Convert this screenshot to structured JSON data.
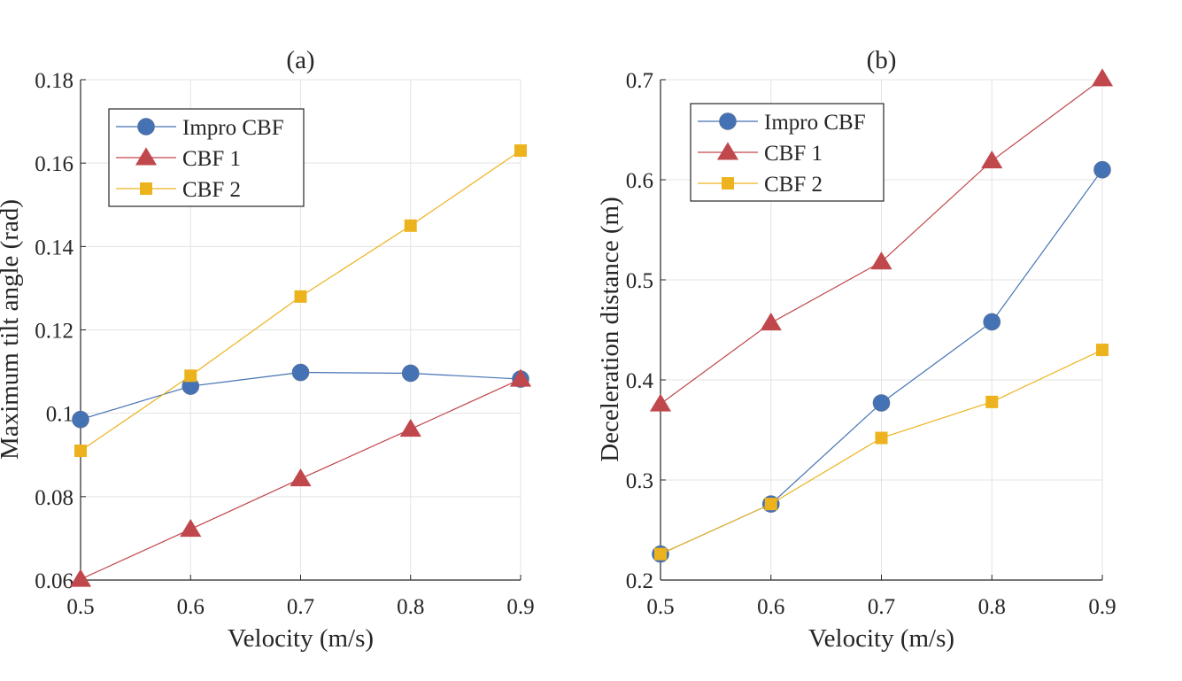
{
  "chart_data": [
    {
      "type": "line",
      "title": "(a)",
      "xlabel": "Velocity (m/s)",
      "ylabel": "Maximum tilt angle (rad)",
      "x": [
        0.5,
        0.6,
        0.7,
        0.8,
        0.9
      ],
      "xlim": [
        0.5,
        0.9
      ],
      "ylim": [
        0.06,
        0.18
      ],
      "xticks": [
        "0.5",
        "0.6",
        "0.7",
        "0.8",
        "0.9"
      ],
      "yticks": [
        "0.06",
        "0.08",
        "0.1",
        "0.12",
        "0.14",
        "0.16",
        "0.18"
      ],
      "grid": true,
      "legend_position": "top-left",
      "series": [
        {
          "name": "Impro CBF",
          "marker": "circle",
          "color": "#4472B4",
          "values": [
            0.0985,
            0.1065,
            0.1098,
            0.1096,
            0.1082
          ]
        },
        {
          "name": "CBF 1",
          "marker": "triangle",
          "color": "#C0474C",
          "values": [
            0.0602,
            0.0722,
            0.0843,
            0.0962,
            0.1082
          ]
        },
        {
          "name": "CBF 2",
          "marker": "square",
          "color": "#EDB31E",
          "values": [
            0.091,
            0.109,
            0.128,
            0.145,
            0.163
          ]
        }
      ]
    },
    {
      "type": "line",
      "title": "(b)",
      "xlabel": "Velocity (m/s)",
      "ylabel": "Deceleration distance (m)",
      "x": [
        0.5,
        0.6,
        0.7,
        0.8,
        0.9
      ],
      "xlim": [
        0.5,
        0.9
      ],
      "ylim": [
        0.2,
        0.7
      ],
      "xticks": [
        "0.5",
        "0.6",
        "0.7",
        "0.8",
        "0.9"
      ],
      "yticks": [
        "0.2",
        "0.3",
        "0.4",
        "0.5",
        "0.6",
        "0.7"
      ],
      "grid": true,
      "legend_position": "top-left",
      "series": [
        {
          "name": "Impro CBF",
          "marker": "circle",
          "color": "#4472B4",
          "values": [
            0.226,
            0.276,
            0.377,
            0.458,
            0.61
          ]
        },
        {
          "name": "CBF 1",
          "marker": "triangle",
          "color": "#C0474C",
          "values": [
            0.376,
            0.457,
            0.518,
            0.619,
            0.701
          ]
        },
        {
          "name": "CBF 2",
          "marker": "square",
          "color": "#EDB31E",
          "values": [
            0.226,
            0.276,
            0.342,
            0.378,
            0.43
          ]
        }
      ]
    }
  ]
}
